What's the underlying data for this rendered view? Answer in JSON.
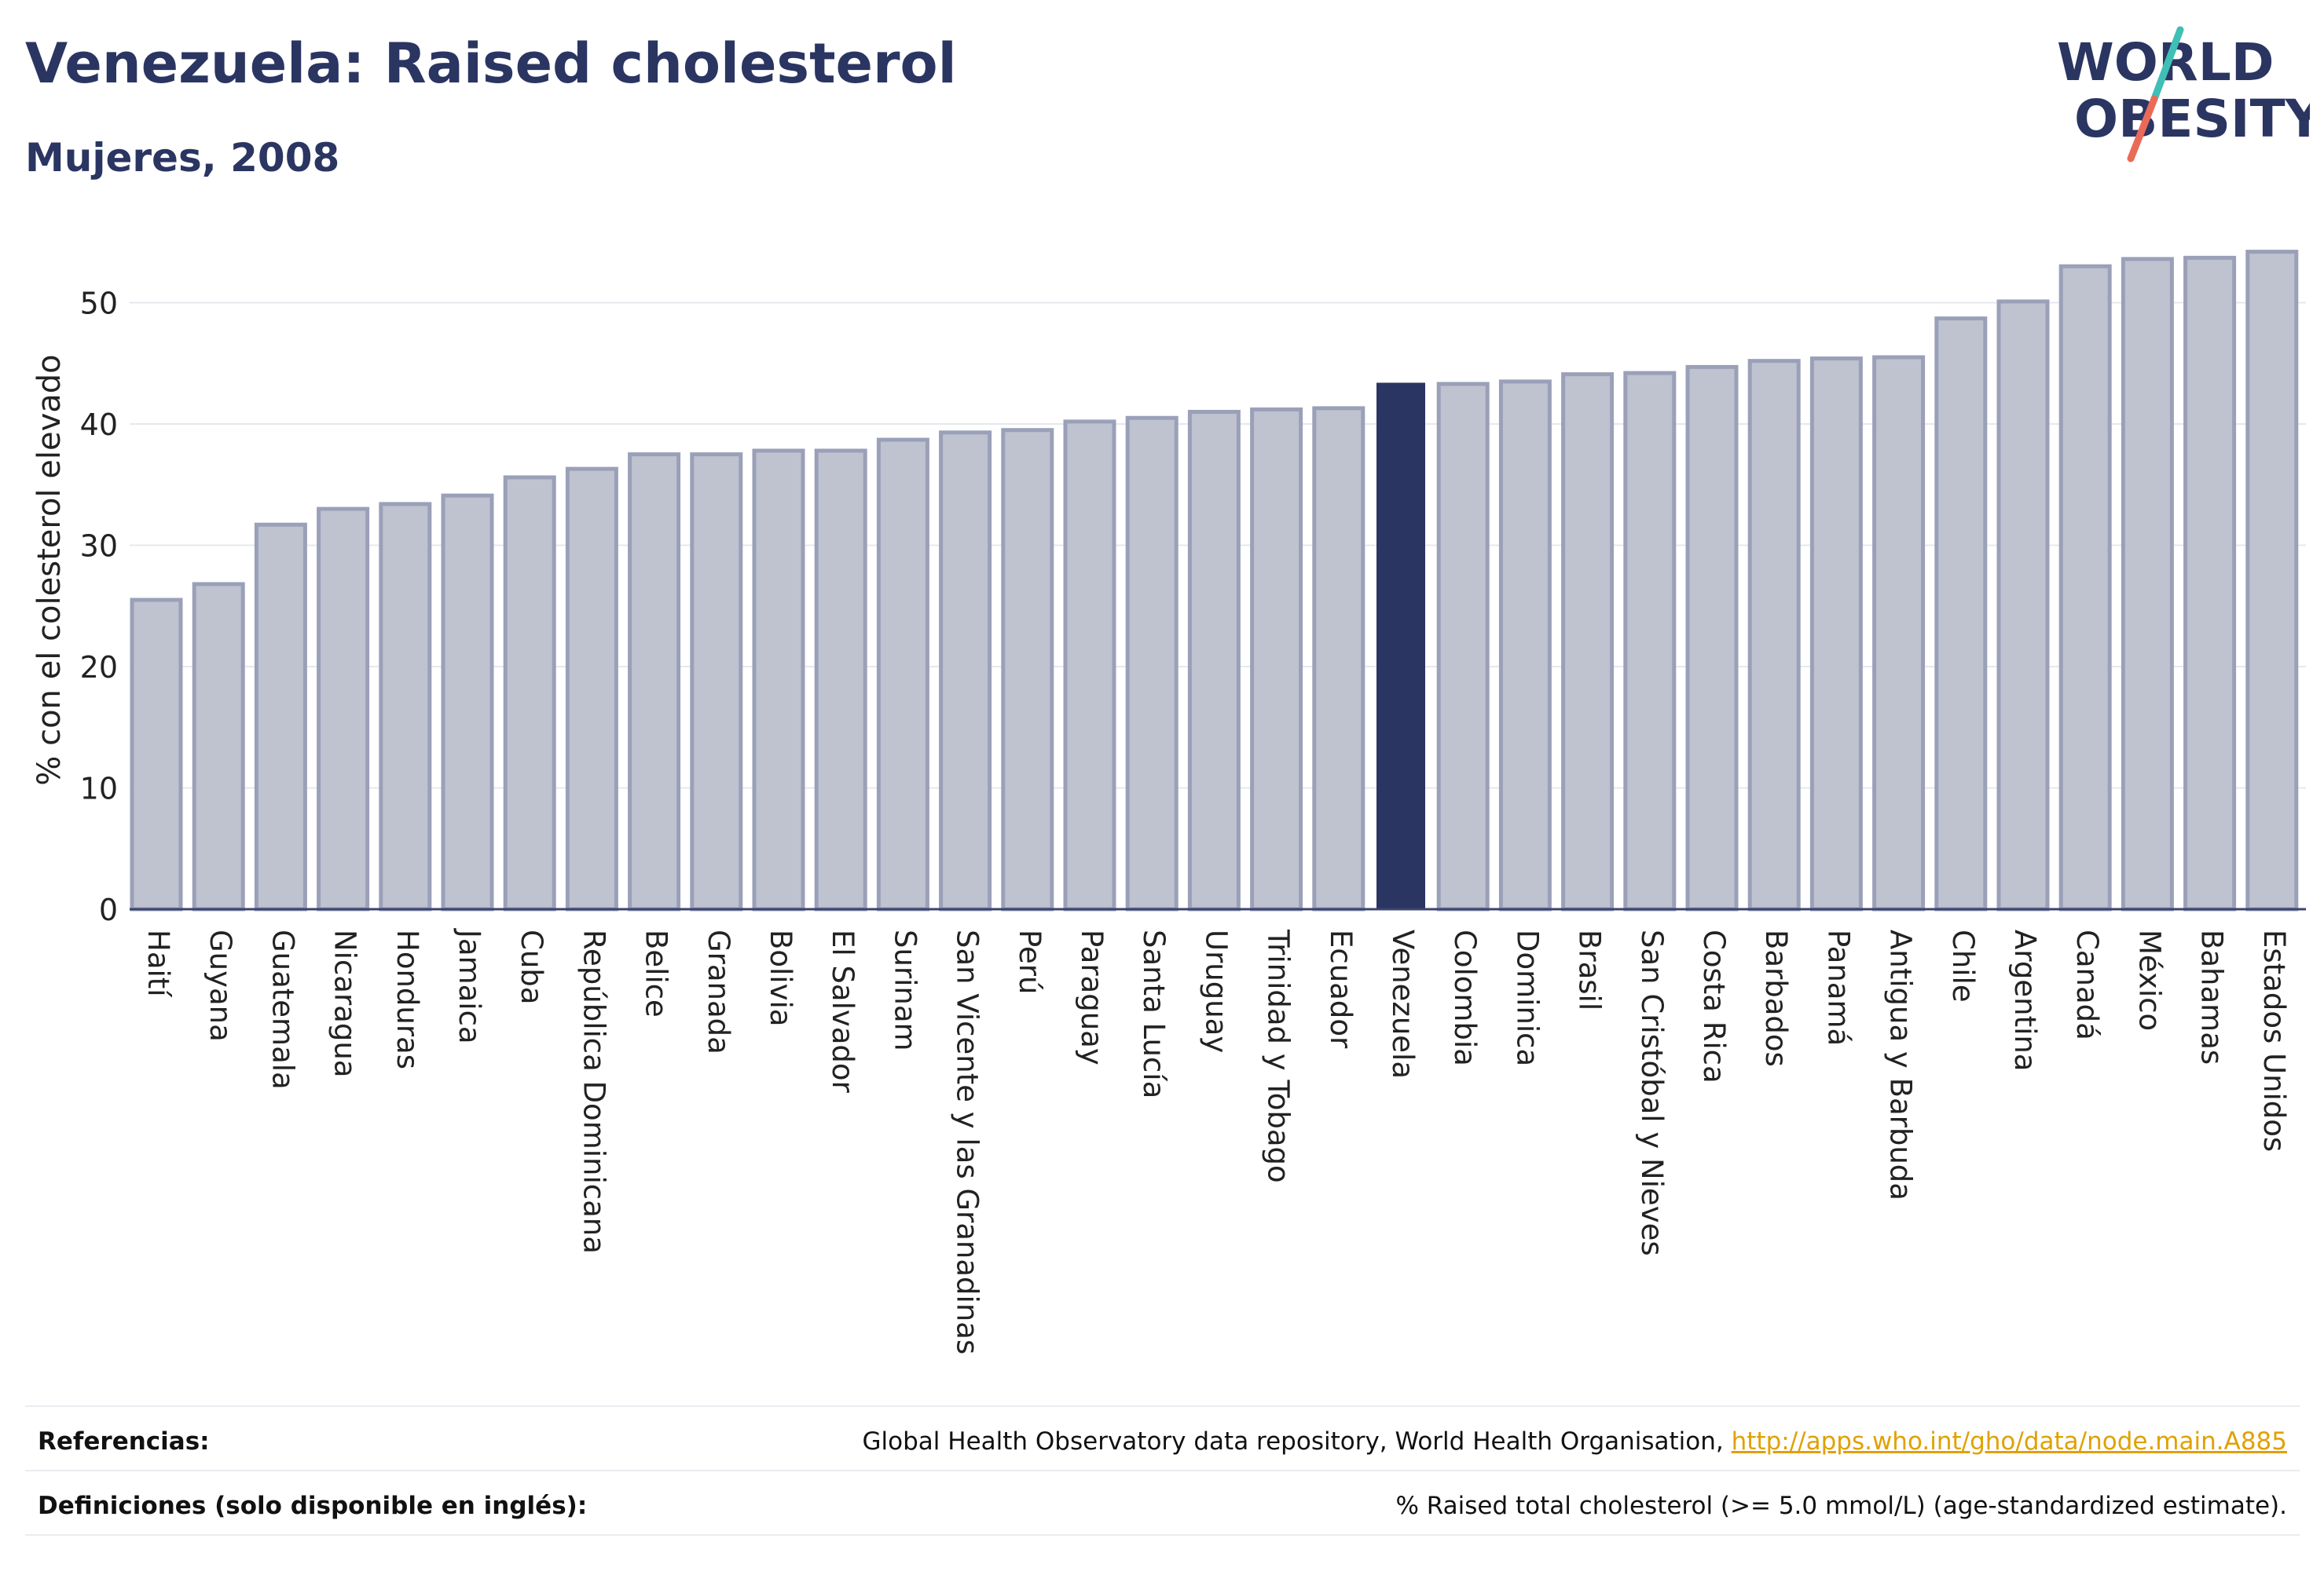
{
  "header": {
    "title": "Venezuela: Raised cholesterol",
    "subtitle": "Mujeres, 2008"
  },
  "logo": {
    "line1": "WORLD",
    "line2": "OBESITY"
  },
  "colors": {
    "highlight": "#2b3562",
    "bar": "#bfc2cf",
    "bar_border": "#9aa0b8",
    "grid": "#e6e8ee"
  },
  "chart_data": {
    "type": "bar",
    "ylabel": "% con el colesterol elevado",
    "ylim": [
      0,
      55
    ],
    "yticks": [
      0,
      10,
      20,
      30,
      40,
      50
    ],
    "highlight": "Venezuela",
    "grid": true,
    "categories": [
      "Haití",
      "Guyana",
      "Guatemala",
      "Nicaragua",
      "Honduras",
      "Jamaica",
      "Cuba",
      "República Dominicana",
      "Belice",
      "Granada",
      "Bolivia",
      "El Salvador",
      "Surinam",
      "San Vicente y las Granadinas",
      "Perú",
      "Paraguay",
      "Santa Lucía",
      "Uruguay",
      "Trinidad y Tobago",
      "Ecuador",
      "Venezuela",
      "Colombia",
      "Dominica",
      "Brasil",
      "San Cristóbal y Nieves",
      "Costa Rica",
      "Barbados",
      "Panamá",
      "Antigua y Barbuda",
      "Chile",
      "Argentina",
      "Canadá",
      "México",
      "Bahamas",
      "Estados Unidos"
    ],
    "values": [
      25.5,
      26.8,
      31.7,
      33.0,
      33.4,
      34.1,
      35.6,
      36.3,
      37.5,
      37.5,
      37.8,
      37.8,
      38.7,
      39.3,
      39.5,
      40.2,
      40.5,
      41.0,
      41.2,
      41.3,
      43.4,
      43.3,
      43.5,
      44.1,
      44.2,
      44.7,
      45.2,
      45.4,
      45.5,
      48.7,
      50.1,
      53.0,
      53.6,
      53.7,
      54.2
    ]
  },
  "footer": {
    "references_label": "Referencias:",
    "references_text": "Global Health Observatory data repository, World Health Organisation, ",
    "references_link": "http://apps.who.int/gho/data/node.main.A885",
    "definitions_label": "Definiciones (solo disponible en inglés):",
    "definitions_text": "% Raised total cholesterol (>= 5.0 mmol/L) (age-standardized estimate)."
  }
}
